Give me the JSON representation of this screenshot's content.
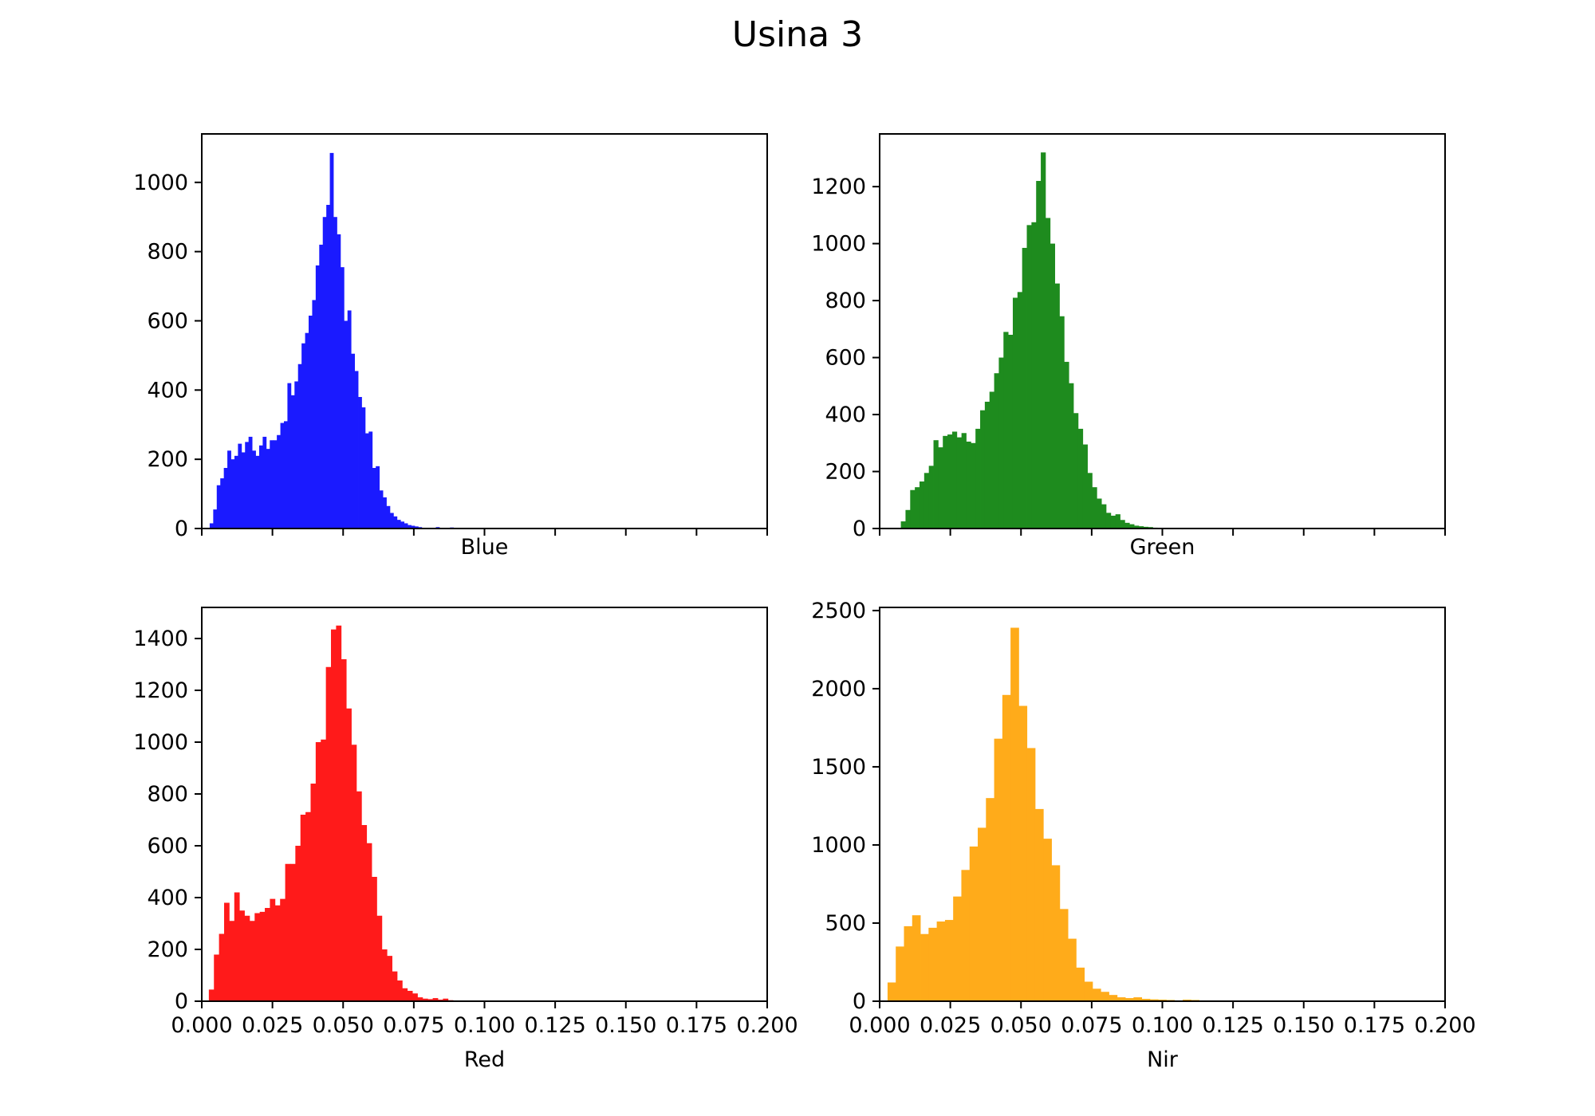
{
  "figure_title": "Usina 3",
  "chart_data": [
    {
      "type": "bar",
      "xlabel": "Blue",
      "ylabel": "",
      "color": "#1a1aff",
      "xlim": [
        0,
        0.2
      ],
      "ylim": [
        0,
        1140
      ],
      "xticks": [
        0,
        0.025,
        0.05,
        0.075,
        0.1,
        0.125,
        0.15,
        0.175,
        0.2
      ],
      "xtick_labels": [],
      "yticks": [
        0,
        200,
        400,
        600,
        800,
        1000
      ],
      "ytick_labels": [
        "0",
        "200",
        "400",
        "600",
        "800",
        "1000"
      ],
      "bin_start": 0.0028,
      "bin_width": 0.00125,
      "values": [
        15,
        55,
        125,
        145,
        175,
        225,
        200,
        210,
        245,
        220,
        250,
        265,
        225,
        210,
        240,
        265,
        230,
        255,
        255,
        270,
        305,
        310,
        420,
        385,
        425,
        475,
        535,
        565,
        615,
        660,
        760,
        820,
        900,
        935,
        1085,
        900,
        850,
        755,
        600,
        630,
        505,
        455,
        380,
        350,
        275,
        280,
        175,
        180,
        110,
        90,
        65,
        45,
        35,
        25,
        20,
        15,
        10,
        8,
        6,
        4,
        2,
        1,
        1,
        2,
        4,
        1,
        1,
        1,
        3,
        1,
        1,
        1,
        0,
        1
      ]
    },
    {
      "type": "bar",
      "xlabel": "Green",
      "ylabel": "",
      "color": "#1e8b1e",
      "xlim": [
        0,
        0.2
      ],
      "ylim": [
        0,
        1385
      ],
      "xticks": [
        0,
        0.025,
        0.05,
        0.075,
        0.1,
        0.125,
        0.15,
        0.175,
        0.2
      ],
      "xtick_labels": [],
      "yticks": [
        0,
        200,
        400,
        600,
        800,
        1000,
        1200
      ],
      "ytick_labels": [
        "0",
        "200",
        "400",
        "600",
        "800",
        "1000",
        "1200"
      ],
      "bin_start": 0.0075,
      "bin_width": 0.00165,
      "values": [
        25,
        65,
        135,
        145,
        165,
        195,
        220,
        310,
        285,
        325,
        330,
        340,
        320,
        335,
        305,
        300,
        350,
        415,
        445,
        480,
        545,
        600,
        690,
        680,
        810,
        830,
        985,
        1065,
        1075,
        1220,
        1320,
        1090,
        1000,
        860,
        745,
        585,
        510,
        405,
        350,
        295,
        195,
        145,
        105,
        85,
        55,
        45,
        50,
        30,
        20,
        15,
        10,
        8,
        6,
        5,
        3
      ]
    },
    {
      "type": "bar",
      "xlabel": "Red",
      "ylabel": "",
      "color": "#ff1a1a",
      "xlim": [
        0,
        0.2
      ],
      "ylim": [
        0,
        1520
      ],
      "xticks": [
        0,
        0.025,
        0.05,
        0.075,
        0.1,
        0.125,
        0.15,
        0.175,
        0.2
      ],
      "xtick_labels": [
        "0.000",
        "0.025",
        "0.050",
        "0.075",
        "0.100",
        "0.125",
        "0.150",
        "0.175",
        "0.200"
      ],
      "yticks": [
        0,
        200,
        400,
        600,
        800,
        1000,
        1200,
        1400
      ],
      "ytick_labels": [
        "0",
        "200",
        "400",
        "600",
        "800",
        "1000",
        "1200",
        "1400"
      ],
      "bin_start": 0.0025,
      "bin_width": 0.0018,
      "values": [
        45,
        180,
        260,
        380,
        310,
        420,
        350,
        330,
        310,
        340,
        345,
        360,
        395,
        370,
        395,
        530,
        530,
        600,
        720,
        730,
        840,
        1000,
        1010,
        1290,
        1435,
        1450,
        1320,
        1130,
        990,
        810,
        680,
        610,
        480,
        330,
        200,
        175,
        115,
        80,
        50,
        40,
        30,
        15,
        10,
        8,
        12,
        6,
        10,
        4,
        3,
        2
      ]
    },
    {
      "type": "bar",
      "xlabel": "Nir",
      "ylabel": "",
      "color": "#ffab1a",
      "xlim": [
        0,
        0.2
      ],
      "ylim": [
        0,
        2520
      ],
      "xticks": [
        0,
        0.025,
        0.05,
        0.075,
        0.1,
        0.125,
        0.15,
        0.175,
        0.2
      ],
      "xtick_labels": [
        "0.000",
        "0.025",
        "0.050",
        "0.075",
        "0.100",
        "0.125",
        "0.150",
        "0.175",
        "0.200"
      ],
      "yticks": [
        0,
        500,
        1000,
        1500,
        2000,
        2500
      ],
      "ytick_labels": [
        "0",
        "500",
        "1000",
        "1500",
        "2000",
        "2500"
      ],
      "bin_start": 0.0028,
      "bin_width": 0.0029,
      "values": [
        120,
        350,
        480,
        550,
        430,
        470,
        510,
        520,
        670,
        840,
        990,
        1110,
        1300,
        1680,
        1960,
        2390,
        1890,
        1620,
        1230,
        1040,
        870,
        590,
        400,
        215,
        125,
        80,
        60,
        40,
        25,
        20,
        25,
        15,
        12,
        10,
        8,
        5,
        10,
        8,
        5,
        4,
        3,
        2,
        2,
        1
      ]
    }
  ]
}
